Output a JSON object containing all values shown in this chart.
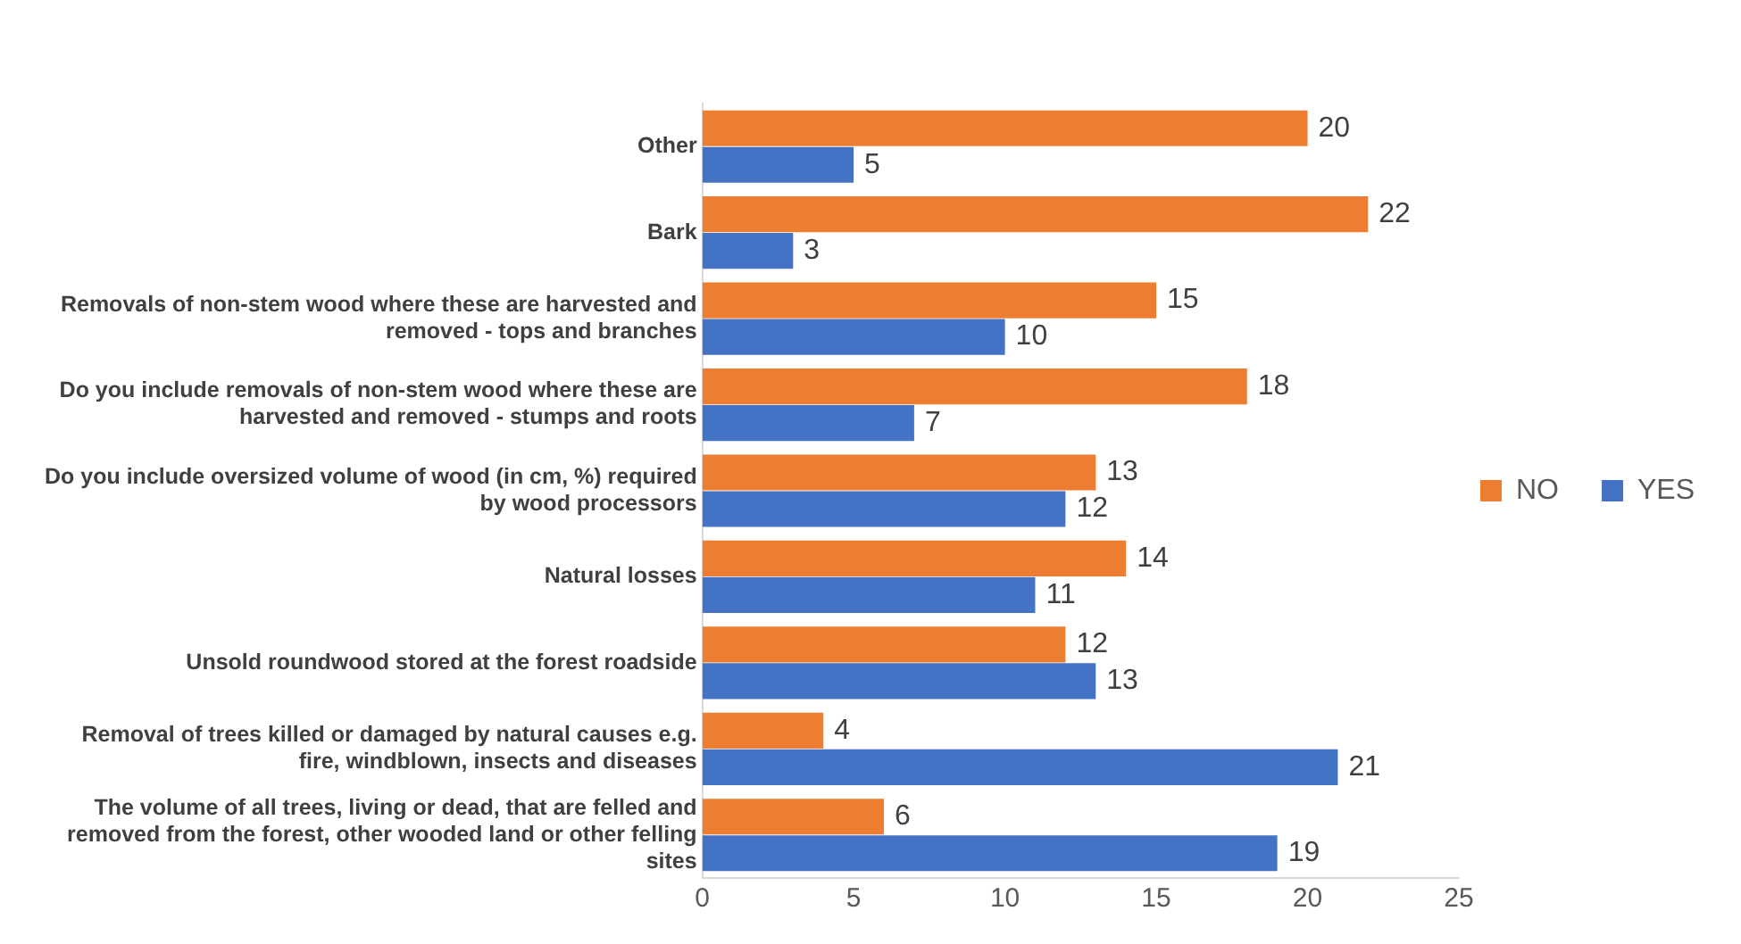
{
  "chart_data": {
    "type": "bar",
    "orientation": "horizontal",
    "categories": [
      "Other",
      "Bark",
      "Removals of non-stem wood where these are harvested and removed - tops and branches",
      "Do you include removals of non-stem wood where these are harvested and removed - stumps and roots",
      "Do you include oversized volume of wood (in cm, %) required by wood processors",
      "Natural losses",
      "Unsold roundwood stored at the forest roadside",
      "Removal of trees killed or damaged by natural causes e.g. fire, windblown, insects and diseases",
      "The volume of all trees, living or dead, that are felled and removed from the forest, other wooded land or other felling sites"
    ],
    "series": [
      {
        "name": "NO",
        "color": "#ed7d31",
        "values": [
          20,
          22,
          15,
          18,
          13,
          14,
          12,
          4,
          6
        ]
      },
      {
        "name": "YES",
        "color": "#4472c4",
        "values": [
          5,
          3,
          10,
          7,
          12,
          11,
          13,
          21,
          19
        ]
      }
    ],
    "xlim": [
      0,
      25
    ],
    "xticks": [
      0,
      5,
      10,
      15,
      20,
      25
    ],
    "data_labels": true,
    "legend": "right",
    "grid": false
  }
}
